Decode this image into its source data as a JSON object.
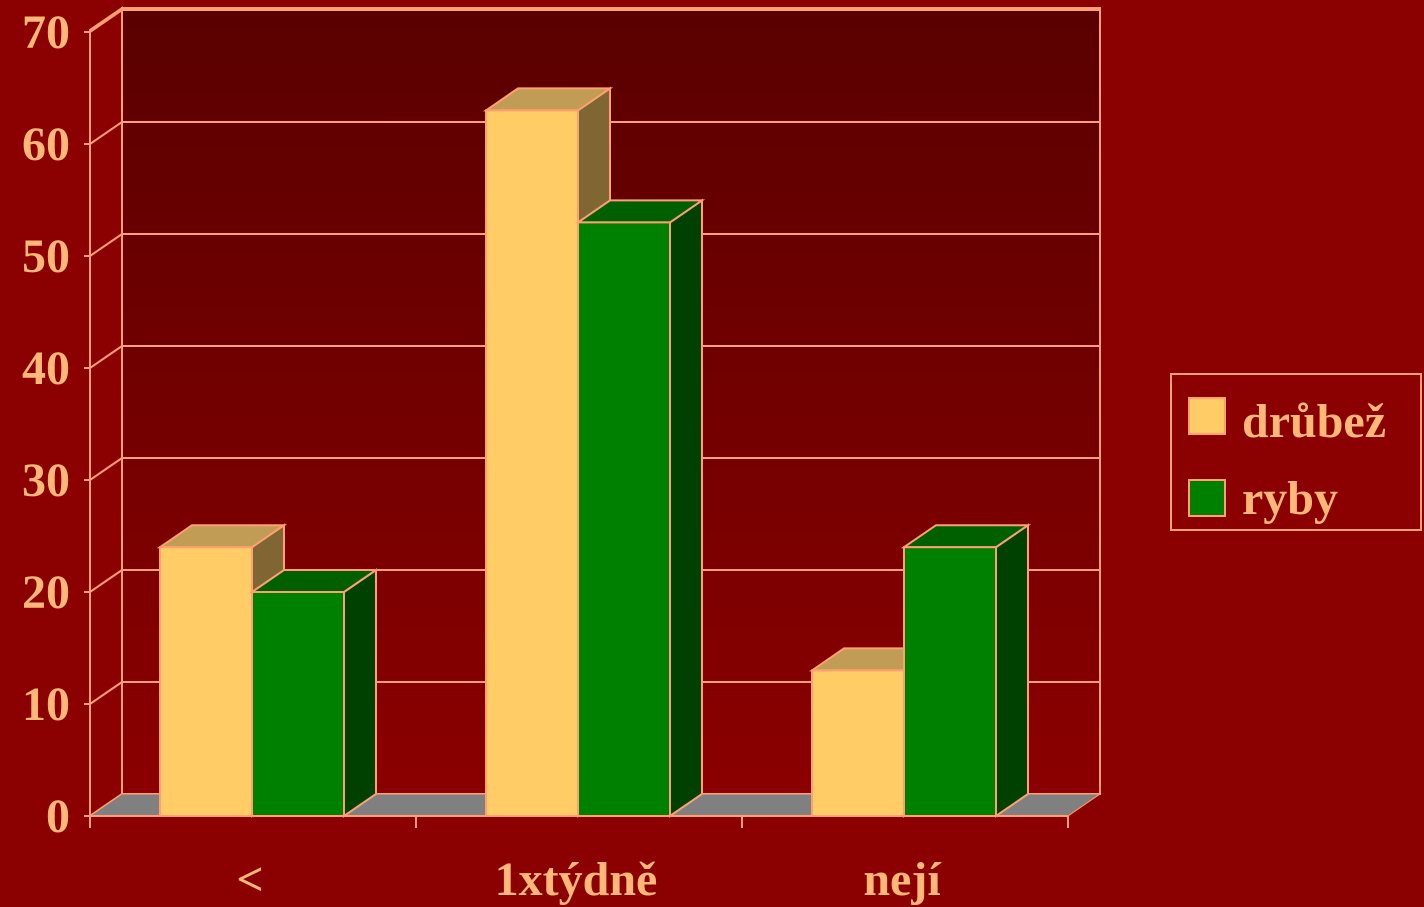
{
  "chart_data": {
    "type": "bar",
    "categories": [
      "<",
      "1xtýdně",
      "nejí"
    ],
    "series": [
      {
        "name": "drůbež",
        "values": [
          24,
          63,
          13
        ],
        "color": "#ffcc66",
        "side_color": "#806633",
        "top_color": "#c09c55"
      },
      {
        "name": "ryby",
        "values": [
          20,
          53,
          24
        ],
        "color": "#008000",
        "side_color": "#004000",
        "top_color": "#006000"
      }
    ],
    "ylim": [
      0,
      70
    ],
    "yticks": [
      0,
      10,
      20,
      30,
      40,
      50,
      60,
      70
    ],
    "grid": true,
    "legend_position": "right",
    "colors": {
      "background": "#8b0000",
      "wall_dark": "#5a0000",
      "text": "#ffb877",
      "gridline": "#ffa070",
      "floor": "#808080"
    }
  }
}
